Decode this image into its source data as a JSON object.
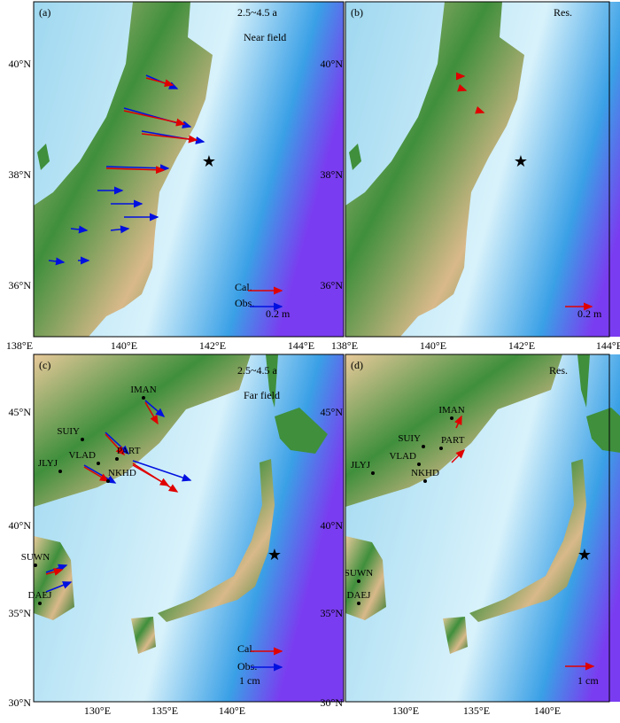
{
  "panels": [
    {
      "label": "(a)",
      "tags": [
        "2.5~4.5 a",
        "Near field"
      ],
      "legend": [
        "Cal.",
        "Obs.",
        "0.2 m"
      ]
    },
    {
      "label": "(b)",
      "tags": [
        "Res."
      ],
      "legend": [
        "0.2 m"
      ]
    },
    {
      "label": "(c)",
      "tags": [
        "2.5~4.5 a",
        "Far field"
      ],
      "legend": [
        "Cal.",
        "Obs.",
        "1 cm"
      ],
      "stations": [
        "IMAN",
        "SUIY",
        "VLAD",
        "PART",
        "JLYJ",
        "NKHD",
        "SUWN",
        "DAEJ"
      ]
    },
    {
      "label": "(d)",
      "tags": [
        "Res."
      ],
      "legend": [
        "1 cm"
      ],
      "stations": [
        "IMAN",
        "SUIY",
        "VLAD",
        "PART",
        "JLYJ",
        "NKHD",
        "SUWN",
        "DAEJ"
      ]
    }
  ],
  "near_axes": {
    "lon": [
      "138°E",
      "140°E",
      "142°E",
      "144°E"
    ],
    "lat": [
      "40°N",
      "38°N",
      "36°N"
    ]
  },
  "far_axes": {
    "lon": [
      "130°E",
      "135°E",
      "140°E"
    ],
    "lat": [
      "45°N",
      "40°N",
      "35°N",
      "30°N"
    ]
  }
}
